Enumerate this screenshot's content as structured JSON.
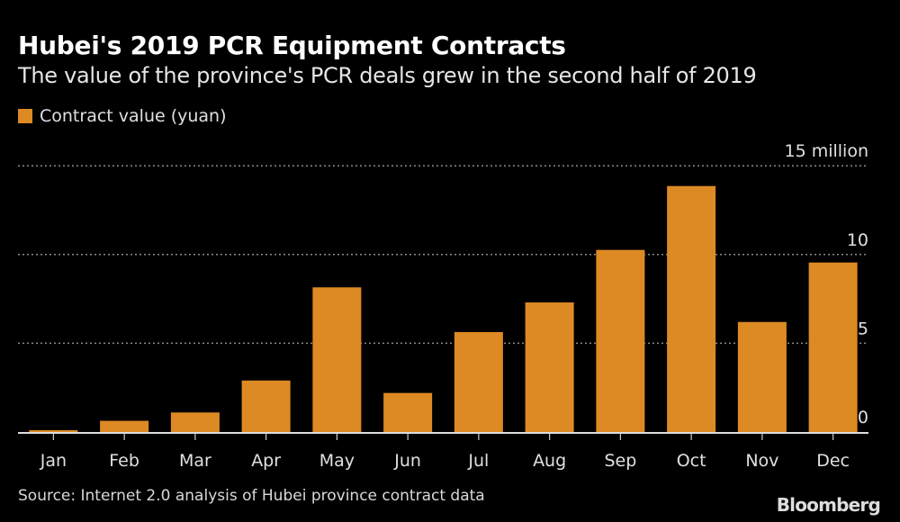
{
  "title": "Hubei's 2019 PCR Equipment Contracts",
  "subtitle": "The value of the province's PCR deals grew in the second half of 2019",
  "source": "Source: Internet 2.0 analysis of Hubei province contract data",
  "logo": "Bloomberg",
  "chart_data": {
    "type": "bar",
    "categories": [
      "Jan",
      "Feb",
      "Mar",
      "Apr",
      "May",
      "Jun",
      "Jul",
      "Aug",
      "Sep",
      "Oct",
      "Nov",
      "Dec"
    ],
    "series": [
      {
        "name": "Contract value (yuan)",
        "color": "#dd8a24",
        "values": [
          0.05,
          0.63,
          1.1,
          2.9,
          8.15,
          2.2,
          5.63,
          7.3,
          10.26,
          13.86,
          6.2,
          9.55
        ]
      }
    ],
    "value_unit": "million yuan",
    "ylim": [
      0,
      15
    ],
    "yticks": [
      0,
      5,
      10,
      15
    ],
    "ytick_labels": [
      "0",
      "5",
      "10",
      "15 million"
    ],
    "grid": true,
    "legend": "top-left"
  }
}
